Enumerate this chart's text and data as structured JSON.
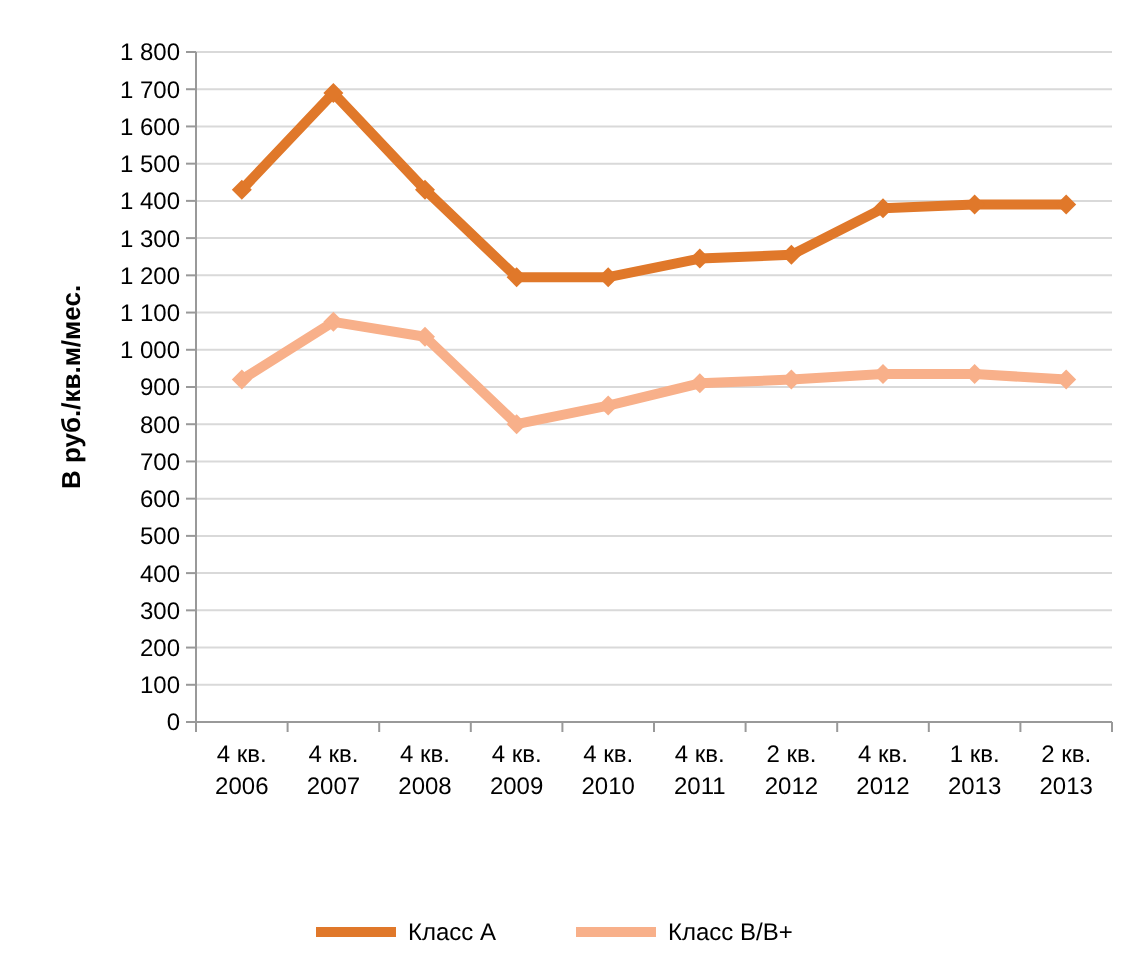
{
  "chart_data": {
    "type": "line",
    "ylabel": "В руб./кв.м/мес.",
    "categories": [
      "4 кв. 2006",
      "4 кв. 2007",
      "4 кв. 2008",
      "4 кв. 2009",
      "4 кв. 2010",
      "4 кв. 2011",
      "2 кв. 2012",
      "4 кв. 2012",
      "1 кв. 2013",
      "2 кв. 2013"
    ],
    "series": [
      {
        "name": "Класс А",
        "color": "#e0782a",
        "values": [
          1430,
          1690,
          1430,
          1195,
          1195,
          1245,
          1255,
          1380,
          1390,
          1390
        ]
      },
      {
        "name": "Класс B/B+",
        "color": "#f8b08a",
        "values": [
          920,
          1075,
          1035,
          800,
          850,
          910,
          920,
          935,
          935,
          920
        ]
      }
    ],
    "ylim": [
      0,
      1800
    ],
    "yticks": [
      {
        "value": 0,
        "label": "0"
      },
      {
        "value": 100,
        "label": "100"
      },
      {
        "value": 200,
        "label": "200"
      },
      {
        "value": 300,
        "label": "300"
      },
      {
        "value": 400,
        "label": "400"
      },
      {
        "value": 500,
        "label": "500"
      },
      {
        "value": 600,
        "label": "600"
      },
      {
        "value": 700,
        "label": "700"
      },
      {
        "value": 800,
        "label": "800"
      },
      {
        "value": 900,
        "label": "900"
      },
      {
        "value": 1000,
        "label": "1 000"
      },
      {
        "value": 1100,
        "label": "1 100"
      },
      {
        "value": 1200,
        "label": "1 200"
      },
      {
        "value": 1300,
        "label": "1 300"
      },
      {
        "value": 1400,
        "label": "1 400"
      },
      {
        "value": 1500,
        "label": "1 500"
      },
      {
        "value": 1600,
        "label": "1 600"
      },
      {
        "value": 1700,
        "label": "1 700"
      },
      {
        "value": 1800,
        "label": "1 800"
      }
    ],
    "grid": true,
    "legend": "bottom",
    "marker": "diamond",
    "line_style": "solid"
  }
}
